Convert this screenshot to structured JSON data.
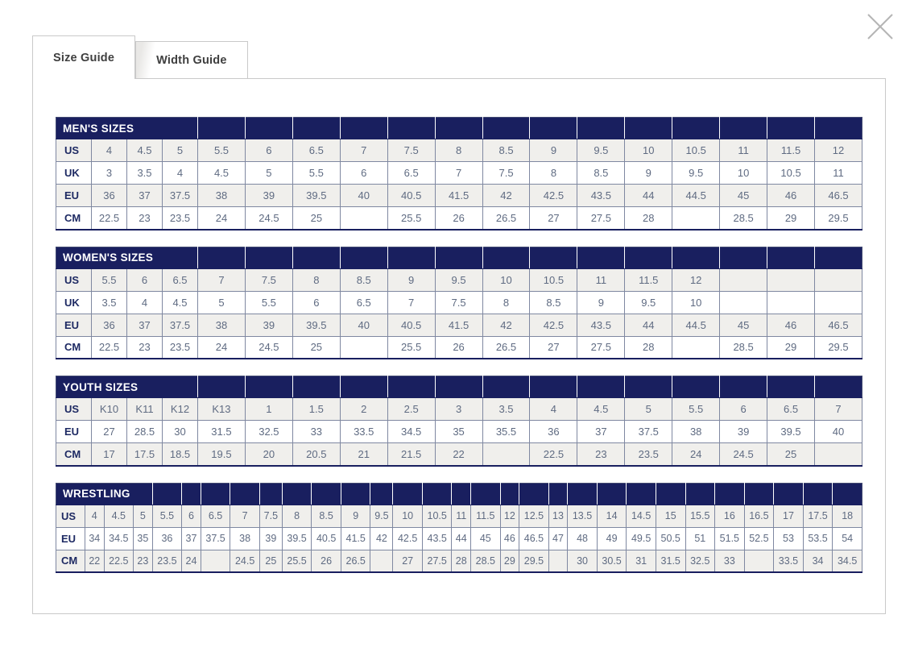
{
  "modal": {
    "tabs": [
      {
        "label": "Size Guide",
        "active": true
      },
      {
        "label": "Width Guide",
        "active": false
      }
    ],
    "close_icon": "close-x"
  },
  "colors": {
    "header_navy": "#191f5f",
    "row_stripe": "#f0efec",
    "value_text": "#5f6b82",
    "label_text": "#1e2a63",
    "grid_border": "#7f88a1",
    "panel_border": "#c9c9c9",
    "close_icon_gray": "#b5b5b5"
  },
  "tables": [
    {
      "title": "MEN'S SIZES",
      "title_colspan": 4,
      "compact": false,
      "rows": [
        {
          "label": "US",
          "values": [
            "4",
            "4.5",
            "5",
            "5.5",
            "6",
            "6.5",
            "7",
            "7.5",
            "8",
            "8.5",
            "9",
            "9.5",
            "10",
            "10.5",
            "11",
            "11.5",
            "12"
          ]
        },
        {
          "label": "UK",
          "values": [
            "3",
            "3.5",
            "4",
            "4.5",
            "5",
            "5.5",
            "6",
            "6.5",
            "7",
            "7.5",
            "8",
            "8.5",
            "9",
            "9.5",
            "10",
            "10.5",
            "11"
          ]
        },
        {
          "label": "EU",
          "values": [
            "36",
            "37",
            "37.5",
            "38",
            "39",
            "39.5",
            "40",
            "40.5",
            "41.5",
            "42",
            "42.5",
            "43.5",
            "44",
            "44.5",
            "45",
            "46",
            "46.5"
          ]
        },
        {
          "label": "CM",
          "values": [
            "22.5",
            "23",
            "23.5",
            "24",
            "24.5",
            "25",
            "",
            "25.5",
            "26",
            "26.5",
            "27",
            "27.5",
            "28",
            "",
            "28.5",
            "29",
            "29.5"
          ]
        }
      ]
    },
    {
      "title": "WOMEN'S SIZES",
      "title_colspan": 4,
      "compact": false,
      "rows": [
        {
          "label": "US",
          "values": [
            "5.5",
            "6",
            "6.5",
            "7",
            "7.5",
            "8",
            "8.5",
            "9",
            "9.5",
            "10",
            "10.5",
            "11",
            "11.5",
            "12",
            "",
            "",
            ""
          ]
        },
        {
          "label": "UK",
          "values": [
            "3.5",
            "4",
            "4.5",
            "5",
            "5.5",
            "6",
            "6.5",
            "7",
            "7.5",
            "8",
            "8.5",
            "9",
            "9.5",
            "10",
            "",
            "",
            ""
          ]
        },
        {
          "label": "EU",
          "values": [
            "36",
            "37",
            "37.5",
            "38",
            "39",
            "39.5",
            "40",
            "40.5",
            "41.5",
            "42",
            "42.5",
            "43.5",
            "44",
            "44.5",
            "45",
            "46",
            "46.5"
          ]
        },
        {
          "label": "CM",
          "values": [
            "22.5",
            "23",
            "23.5",
            "24",
            "24.5",
            "25",
            "",
            "25.5",
            "26",
            "26.5",
            "27",
            "27.5",
            "28",
            "",
            "28.5",
            "29",
            "29.5"
          ]
        }
      ]
    },
    {
      "title": "YOUTH SIZES",
      "title_colspan": 4,
      "compact": false,
      "rows": [
        {
          "label": "US",
          "values": [
            "K10",
            "K11",
            "K12",
            "K13",
            "1",
            "1.5",
            "2",
            "2.5",
            "3",
            "3.5",
            "4",
            "4.5",
            "5",
            "5.5",
            "6",
            "6.5",
            "7"
          ]
        },
        {
          "label": "EU",
          "values": [
            "27",
            "28.5",
            "30",
            "31.5",
            "32.5",
            "33",
            "33.5",
            "34.5",
            "35",
            "35.5",
            "36",
            "37",
            "37.5",
            "38",
            "39",
            "39.5",
            "40"
          ]
        },
        {
          "label": "CM",
          "values": [
            "17",
            "17.5",
            "18.5",
            "19.5",
            "20",
            "20.5",
            "21",
            "21.5",
            "22",
            "",
            "22.5",
            "23",
            "23.5",
            "24",
            "24.5",
            "25",
            ""
          ]
        }
      ]
    },
    {
      "title": "WRESTLING",
      "title_colspan": 4,
      "compact": true,
      "rows": [
        {
          "label": "US",
          "values": [
            "4",
            "4.5",
            "5",
            "5.5",
            "6",
            "6.5",
            "7",
            "7.5",
            "8",
            "8.5",
            "9",
            "9.5",
            "10",
            "10.5",
            "11",
            "11.5",
            "12",
            "12.5",
            "13",
            "13.5",
            "14",
            "14.5",
            "15",
            "15.5",
            "16",
            "16.5",
            "17",
            "17.5",
            "18"
          ]
        },
        {
          "label": "EU",
          "values": [
            "34",
            "34.5",
            "35",
            "36",
            "37",
            "37.5",
            "38",
            "39",
            "39.5",
            "40.5",
            "41.5",
            "42",
            "42.5",
            "43.5",
            "44",
            "45",
            "46",
            "46.5",
            "47",
            "48",
            "49",
            "49.5",
            "50.5",
            "51",
            "51.5",
            "52.5",
            "53",
            "53.5",
            "54"
          ]
        },
        {
          "label": "CM",
          "values": [
            "22",
            "22.5",
            "23",
            "23.5",
            "24",
            "",
            "24.5",
            "25",
            "25.5",
            "26",
            "26.5",
            "",
            "27",
            "27.5",
            "28",
            "28.5",
            "29",
            "29.5",
            "",
            "30",
            "30.5",
            "31",
            "31.5",
            "32.5",
            "33",
            "",
            "33.5",
            "34",
            "34.5"
          ]
        }
      ]
    }
  ]
}
